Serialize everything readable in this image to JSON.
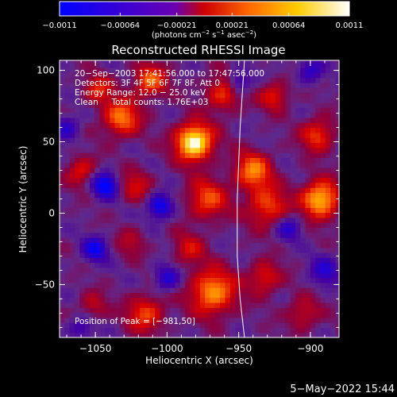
{
  "chart_data": {
    "type": "heatmap",
    "title": "Reconstructed RHESSI Image",
    "xlabel": "Heliocentric X (arcsec)",
    "ylabel": "Heliocentric Y (arcsec)",
    "xlim": [
      -1075,
      -880
    ],
    "ylim": [
      -87,
      107
    ],
    "xticks": [
      -1050,
      -1000,
      -950,
      -900
    ],
    "xtick_labels": [
      "−1050",
      "−1000",
      "−950",
      "−900"
    ],
    "yticks": [
      -50,
      0,
      50,
      100
    ],
    "ytick_labels": [
      "−50",
      "0",
      "50",
      "100"
    ],
    "colorbar": {
      "min": -0.0011,
      "max": 0.0011,
      "ticks": [
        -0.0011,
        -0.00064,
        -0.00021,
        0.00021,
        0.00064,
        0.0011
      ],
      "tick_labels": [
        "−0.0011",
        "−0.00064",
        "−0.00021",
        "0.00021",
        "0.00064",
        "0.0011"
      ],
      "unit_parts": [
        "(photons cm",
        "−2",
        " s",
        "−1",
        " asec",
        "−2",
        ")"
      ],
      "colors": [
        "#0000ff",
        "#6a00b0",
        "#cc0000",
        "#ff6600",
        "#ffcc00",
        "#ffffff"
      ]
    },
    "annotations": [
      "20−Sep−2003 17:41:56.000 to 17:47:56.000",
      "Detectors: 3F 4F 5F 6F 7F 8F, Att 0",
      "Energy Range: 12.0 − 25.0 keV",
      "Clean     Total counts: 1.76E+03"
    ],
    "peak_label": "Position of Peak = [−981,50]",
    "peak": [
      -981,
      50
    ],
    "limb_curve": [
      [
        -946,
        107
      ],
      [
        -949,
        60
      ],
      [
        -951,
        10
      ],
      [
        -951,
        -30
      ],
      [
        -949,
        -60
      ],
      [
        -946,
        -87
      ]
    ],
    "sources": [
      {
        "x": -981,
        "y": 50,
        "amp": 1.25,
        "s": 9
      },
      {
        "x": -1032,
        "y": 67,
        "amp": 0.75,
        "s": 9
      },
      {
        "x": -1012,
        "y": 93,
        "amp": 0.7,
        "s": 8
      },
      {
        "x": -1048,
        "y": 87,
        "amp": 0.5,
        "s": 7
      },
      {
        "x": -960,
        "y": 85,
        "amp": 0.6,
        "s": 9
      },
      {
        "x": -925,
        "y": 82,
        "amp": 0.5,
        "s": 7
      },
      {
        "x": -972,
        "y": 10,
        "amp": 0.6,
        "s": 10
      },
      {
        "x": -940,
        "y": 30,
        "amp": 0.75,
        "s": 9
      },
      {
        "x": -930,
        "y": 5,
        "amp": 0.6,
        "s": 10
      },
      {
        "x": -893,
        "y": 10,
        "amp": 1.0,
        "s": 9
      },
      {
        "x": -895,
        "y": 55,
        "amp": 0.6,
        "s": 8
      },
      {
        "x": -1060,
        "y": 30,
        "amp": 0.5,
        "s": 7
      },
      {
        "x": -1022,
        "y": 20,
        "amp": 0.4,
        "s": 8
      },
      {
        "x": -985,
        "y": -25,
        "amp": 0.4,
        "s": 8
      },
      {
        "x": -968,
        "y": -55,
        "amp": 0.85,
        "s": 11
      },
      {
        "x": -1015,
        "y": -70,
        "amp": 0.6,
        "s": 9
      },
      {
        "x": -1052,
        "y": -65,
        "amp": 0.35,
        "s": 7
      },
      {
        "x": -932,
        "y": -45,
        "amp": 0.5,
        "s": 8
      },
      {
        "x": -905,
        "y": -70,
        "amp": 0.4,
        "s": 8
      },
      {
        "x": -1025,
        "y": -20,
        "amp": 0.3,
        "s": 7
      },
      {
        "x": -1043,
        "y": 20,
        "amp": -0.9,
        "s": 6
      },
      {
        "x": -1005,
        "y": 5,
        "amp": -0.8,
        "s": 6
      },
      {
        "x": -1050,
        "y": -25,
        "amp": -0.7,
        "s": 6
      },
      {
        "x": -1000,
        "y": -45,
        "amp": -0.6,
        "s": 6
      },
      {
        "x": -950,
        "y": 92,
        "amp": -0.6,
        "s": 6
      },
      {
        "x": -915,
        "y": -10,
        "amp": -0.5,
        "s": 6
      },
      {
        "x": -890,
        "y": -40,
        "amp": -0.5,
        "s": 7
      },
      {
        "x": -1070,
        "y": 60,
        "amp": -0.5,
        "s": 6
      },
      {
        "x": -900,
        "y": 100,
        "amp": -0.5,
        "s": 6
      },
      {
        "x": -1060,
        "y": -80,
        "amp": -0.4,
        "s": 6
      }
    ]
  },
  "footer_timestamp": "5−May−2022 15:44"
}
